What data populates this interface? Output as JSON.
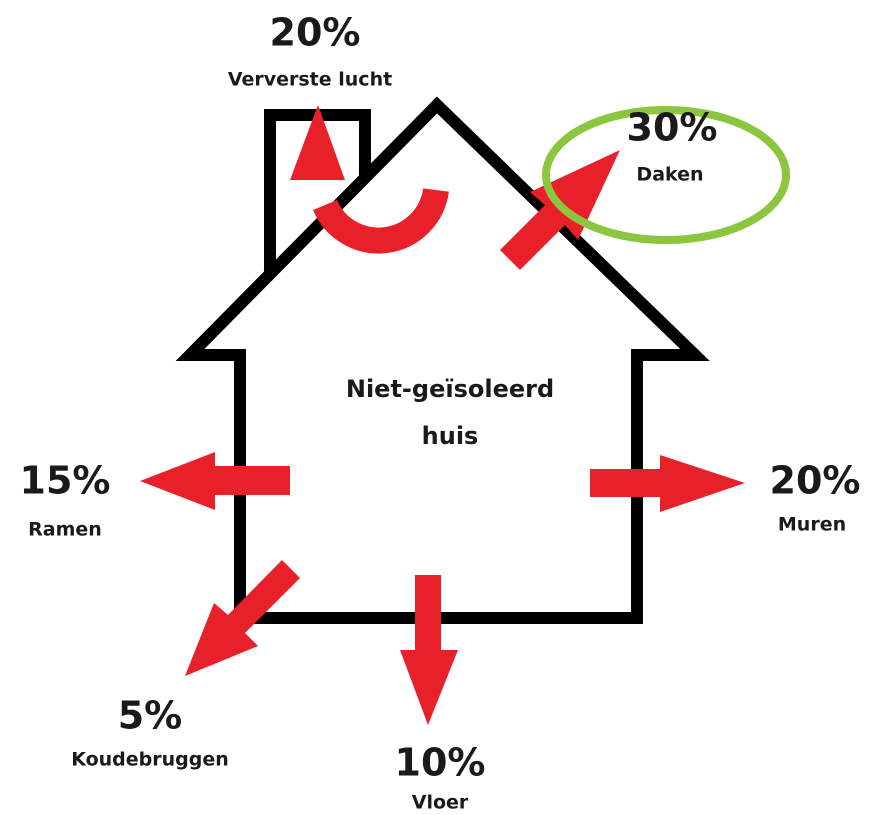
{
  "center_label": [
    "Niet-geïsoleerd",
    "huis"
  ],
  "losses": [
    {
      "percent": "20%",
      "label": "Ververste lucht"
    },
    {
      "percent": "30%",
      "label": "Daken"
    },
    {
      "percent": "15%",
      "label": "Ramen"
    },
    {
      "percent": "20%",
      "label": "Muren"
    },
    {
      "percent": "5%",
      "label": "Koudebruggen"
    },
    {
      "percent": "10%",
      "label": "Vloer"
    }
  ]
}
